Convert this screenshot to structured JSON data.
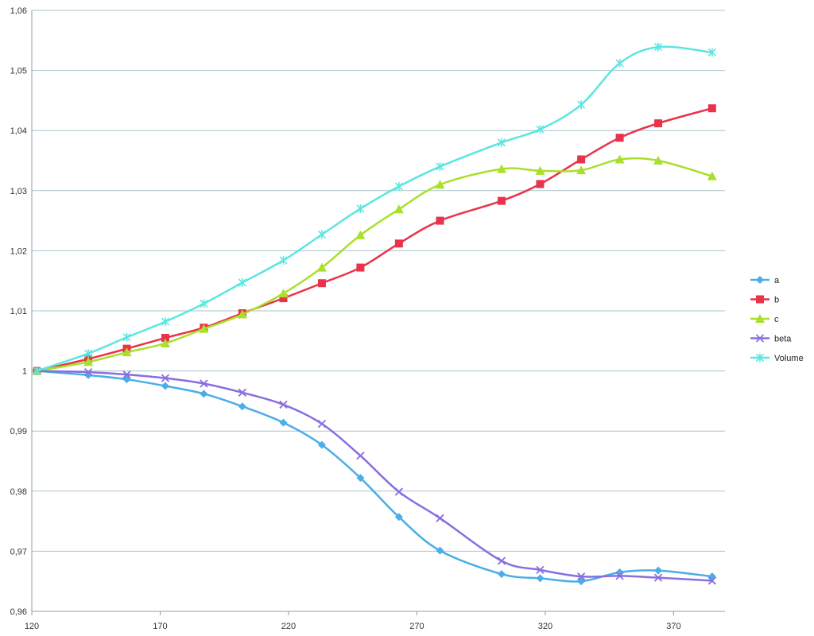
{
  "chart_data": {
    "type": "line",
    "title": "",
    "xlabel": "",
    "ylabel": "",
    "xlim": [
      120,
      390
    ],
    "ylim": [
      0.96,
      1.06
    ],
    "x_ticks": [
      120,
      170,
      220,
      270,
      320,
      370
    ],
    "x_tick_labels": [
      "120",
      "170",
      "220",
      "270",
      "320",
      "370"
    ],
    "y_ticks": [
      0.96,
      0.97,
      0.98,
      0.99,
      1.0,
      1.01,
      1.02,
      1.03,
      1.04,
      1.05,
      1.06
    ],
    "y_tick_labels": [
      "0,96",
      "0,97",
      "0,98",
      "0,99",
      "1",
      "1,01",
      "1,02",
      "1,03",
      "1,04",
      "1,05",
      "1,06"
    ],
    "grid": "horizontal",
    "legend_position": "right",
    "x": [
      122,
      142,
      157,
      172,
      187,
      202,
      218,
      233,
      248,
      263,
      279,
      303,
      318,
      334,
      349,
      364,
      385
    ],
    "series": [
      {
        "name": "a",
        "color": "#4aaee8",
        "marker": "diamond",
        "values": [
          1.0,
          0.9993,
          0.9986,
          0.9975,
          0.9962,
          0.9941,
          0.9914,
          0.9877,
          0.9822,
          0.9757,
          0.9701,
          0.9662,
          0.9655,
          0.965,
          0.9665,
          0.9668,
          0.9658
        ]
      },
      {
        "name": "b",
        "color": "#e8334a",
        "marker": "square",
        "values": [
          1.0,
          1.002,
          1.0037,
          1.0055,
          1.0072,
          1.0096,
          1.0121,
          1.0146,
          1.0172,
          1.0212,
          1.025,
          1.0283,
          1.0311,
          1.0352,
          1.0388,
          1.0412,
          1.0437
        ]
      },
      {
        "name": "c",
        "color": "#a8e02a",
        "marker": "triangle",
        "values": [
          1.0,
          1.0015,
          1.0031,
          1.0046,
          1.007,
          1.0094,
          1.0129,
          1.0172,
          1.0226,
          1.0269,
          1.031,
          1.0336,
          1.0333,
          1.0334,
          1.0352,
          1.035,
          1.0324
        ]
      },
      {
        "name": "beta",
        "color": "#8a6ee0",
        "marker": "x",
        "values": [
          1.0,
          0.9998,
          0.9994,
          0.9988,
          0.9979,
          0.9964,
          0.9944,
          0.9912,
          0.9859,
          0.9799,
          0.9755,
          0.9684,
          0.9669,
          0.9658,
          0.9659,
          0.9656,
          0.9651
        ]
      },
      {
        "name": "Volume",
        "color": "#5ce6e0",
        "marker": "star",
        "values": [
          1.0,
          1.0029,
          1.0056,
          1.0082,
          1.0112,
          1.0147,
          1.0184,
          1.0227,
          1.027,
          1.0307,
          1.034,
          1.038,
          1.0402,
          1.0443,
          1.0512,
          1.0539,
          1.053
        ]
      }
    ]
  }
}
